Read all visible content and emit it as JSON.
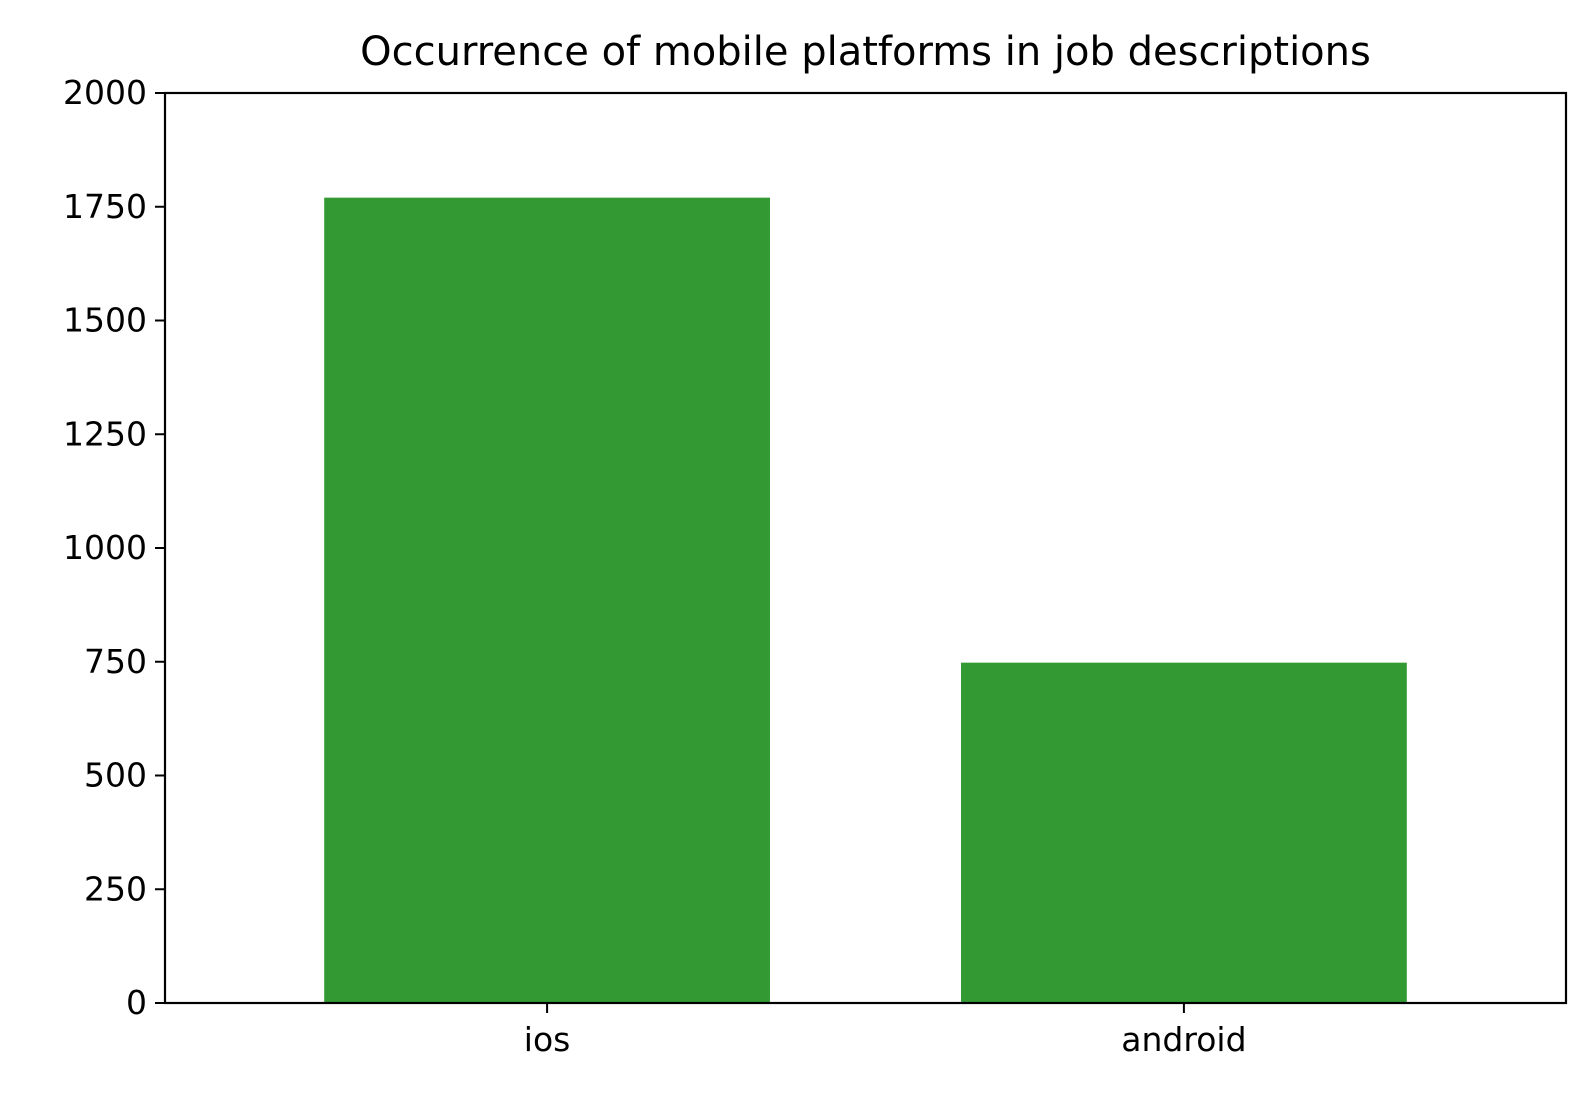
{
  "chart_data": {
    "type": "bar",
    "title": "Occurrence of mobile platforms in job descriptions",
    "xlabel": "",
    "ylabel": "",
    "categories": [
      "ios",
      "android"
    ],
    "values": [
      1770,
      748
    ],
    "ylim": [
      0,
      2000
    ],
    "yticks": [
      0,
      250,
      500,
      750,
      1000,
      1250,
      1500,
      1750,
      2000
    ],
    "bar_color": "#339933",
    "grid": false,
    "legend": "none"
  }
}
